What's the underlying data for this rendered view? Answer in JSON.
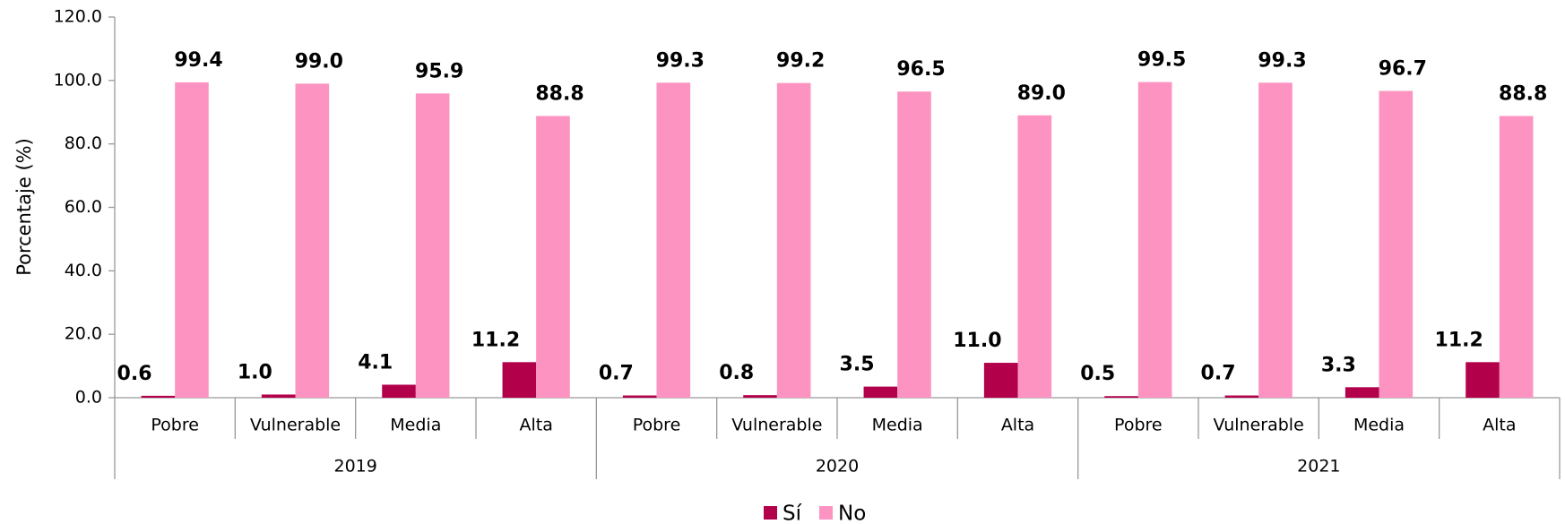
{
  "chart_data": {
    "type": "bar",
    "ylabel": "Porcentaje (%)",
    "categories": [
      "Pobre",
      "Vulnerable",
      "Media",
      "Alta",
      "Pobre",
      "Vulnerable",
      "Media",
      "Alta",
      "Pobre",
      "Vulnerable",
      "Media",
      "Alta"
    ],
    "category_groups": [
      "2019",
      "2020",
      "2021"
    ],
    "series": [
      {
        "name": "Sí",
        "color": "#b3004b",
        "values": [
          0.6,
          1.0,
          4.1,
          11.2,
          0.7,
          0.8,
          3.5,
          11.0,
          0.5,
          0.7,
          3.3,
          11.2
        ],
        "value_labels": [
          "0.6",
          "1.0",
          "4.1",
          "11.2",
          "0.7",
          "0.8",
          "3.5",
          "11.0",
          "0.5",
          "0.7",
          "3.3",
          "11.2"
        ]
      },
      {
        "name": "No",
        "color": "#fd93c0",
        "values": [
          99.4,
          99.0,
          95.9,
          88.8,
          99.3,
          99.2,
          96.5,
          89.0,
          99.5,
          99.3,
          96.7,
          88.8
        ],
        "value_labels": [
          "99.4",
          "99.0",
          "95.9",
          "88.8",
          "99.3",
          "99.2",
          "96.5",
          "89.0",
          "99.5",
          "99.3",
          "96.7",
          "88.8"
        ]
      }
    ],
    "ylim": [
      0,
      120
    ],
    "yticks": [
      {
        "value": 0,
        "label": "0.0"
      },
      {
        "value": 20,
        "label": "20.0"
      },
      {
        "value": 40,
        "label": "40.0"
      },
      {
        "value": 60,
        "label": "60.0"
      },
      {
        "value": 80,
        "label": "80.0"
      },
      {
        "value": 100,
        "label": "100.0"
      },
      {
        "value": 120,
        "label": "120.0"
      }
    ],
    "legend": "bottom"
  }
}
